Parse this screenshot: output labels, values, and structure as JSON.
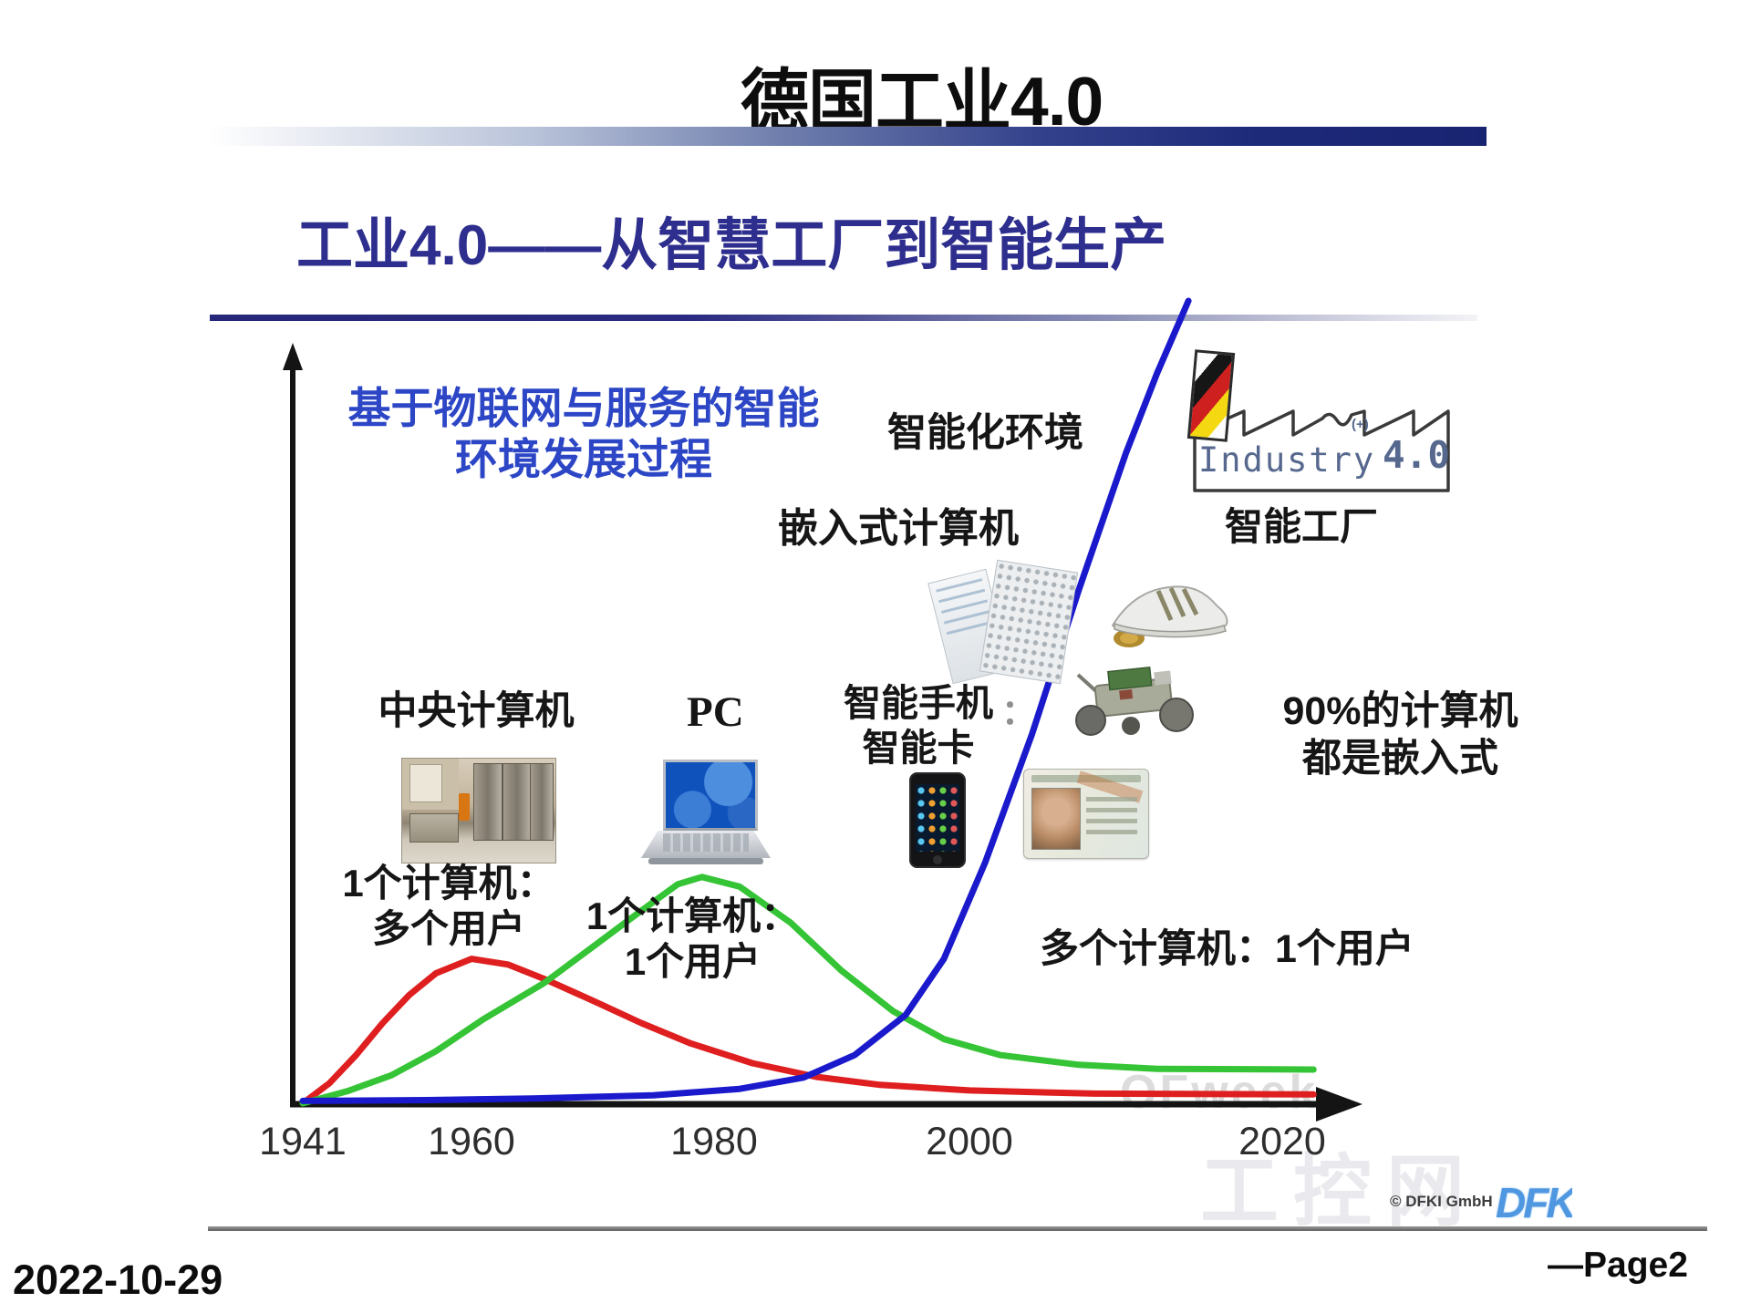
{
  "page": {
    "title": "德国工业4.0",
    "date": "2022-10-29",
    "page_number": "—Page2"
  },
  "slide": {
    "title": "工业4.0——从智慧工厂到智能生产",
    "annotations": {
      "iot_line1": "基于物联网与服务的智能",
      "iot_line2": "环境发展过程",
      "smart_env": "智能化环境",
      "embedded": "嵌入式计算机",
      "mainframe": "中央计算机",
      "pc": "PC",
      "smartphone": "智能手机",
      "smartcard": "智能卡",
      "faint_colon": "：",
      "ninety_line1": "90%的计算机",
      "ninety_line2": "都是嵌入式",
      "one_many_line1": "1个计算机：",
      "one_many_line2": "多个用户",
      "one_one_line1": "1个计算机：",
      "one_one_line2": "1个用户",
      "many_one": "多个计算机：1个用户",
      "smart_factory": "智能工厂"
    },
    "logo": {
      "name": "Industry",
      "version": "4.0",
      "antenna": "(+)"
    },
    "watermark": {
      "ofweek": "OFweek",
      "gkong": "工控网",
      "copyright": "© DFKI GmbH",
      "dfki": "DFKI"
    },
    "chart_data": {
      "type": "line",
      "title": "基于物联网与服务的智能环境发展过程",
      "x_ticks": [
        "1941",
        "1960",
        "1980",
        "2000",
        "2020"
      ],
      "x_range": [
        1941,
        2022
      ],
      "ylim": [
        0,
        100
      ],
      "y_axis_labeled": false,
      "grid": false,
      "legend": "none",
      "series": [
        {
          "name": "中央计算机（1个计算机：多个用户）",
          "color": "#df1f1f",
          "points": [
            [
              1941,
              0
            ],
            [
              1944,
              2.5
            ],
            [
              1947,
              6
            ],
            [
              1950,
              10
            ],
            [
              1953,
              13.5
            ],
            [
              1956,
              16.2
            ],
            [
              1960,
              18
            ],
            [
              1963,
              17.3
            ],
            [
              1966,
              15.5
            ],
            [
              1970,
              12.8
            ],
            [
              1974,
              10
            ],
            [
              1978,
              7.5
            ],
            [
              1983,
              5
            ],
            [
              1988,
              3.3
            ],
            [
              1993,
              2.3
            ],
            [
              2000,
              1.6
            ],
            [
              2008,
              1.2
            ],
            [
              2022,
              1.1
            ]
          ]
        },
        {
          "name": "PC（1个计算机：1个用户）",
          "color": "#35c435",
          "points": [
            [
              1941,
              0
            ],
            [
              1946,
              1.5
            ],
            [
              1951,
              3.5
            ],
            [
              1956,
              6.5
            ],
            [
              1961,
              10.5
            ],
            [
              1966,
              15
            ],
            [
              1970,
              19.5
            ],
            [
              1974,
              24
            ],
            [
              1977,
              27.3
            ],
            [
              1979,
              28.2
            ],
            [
              1982,
              27
            ],
            [
              1986,
              22.5
            ],
            [
              1990,
              16.5
            ],
            [
              1994,
              11.5
            ],
            [
              1998,
              8
            ],
            [
              2002,
              6
            ],
            [
              2007,
              4.8
            ],
            [
              2012,
              4.3
            ],
            [
              2022,
              4.2
            ]
          ]
        },
        {
          "name": "嵌入式计算机/智能化环境（多个计算机：1个用户）",
          "color": "#1a1acc",
          "points": [
            [
              1941,
              0.3
            ],
            [
              1955,
              0.4
            ],
            [
              1965,
              0.6
            ],
            [
              1975,
              1
            ],
            [
              1982,
              1.8
            ],
            [
              1987,
              3.2
            ],
            [
              1991,
              6
            ],
            [
              1995,
              11
            ],
            [
              1998,
              18
            ],
            [
              2001,
              30
            ],
            [
              2004,
              46
            ],
            [
              2007,
              64
            ],
            [
              2010,
              81
            ],
            [
              2012,
              91
            ],
            [
              2014,
              100
            ]
          ]
        }
      ]
    }
  }
}
